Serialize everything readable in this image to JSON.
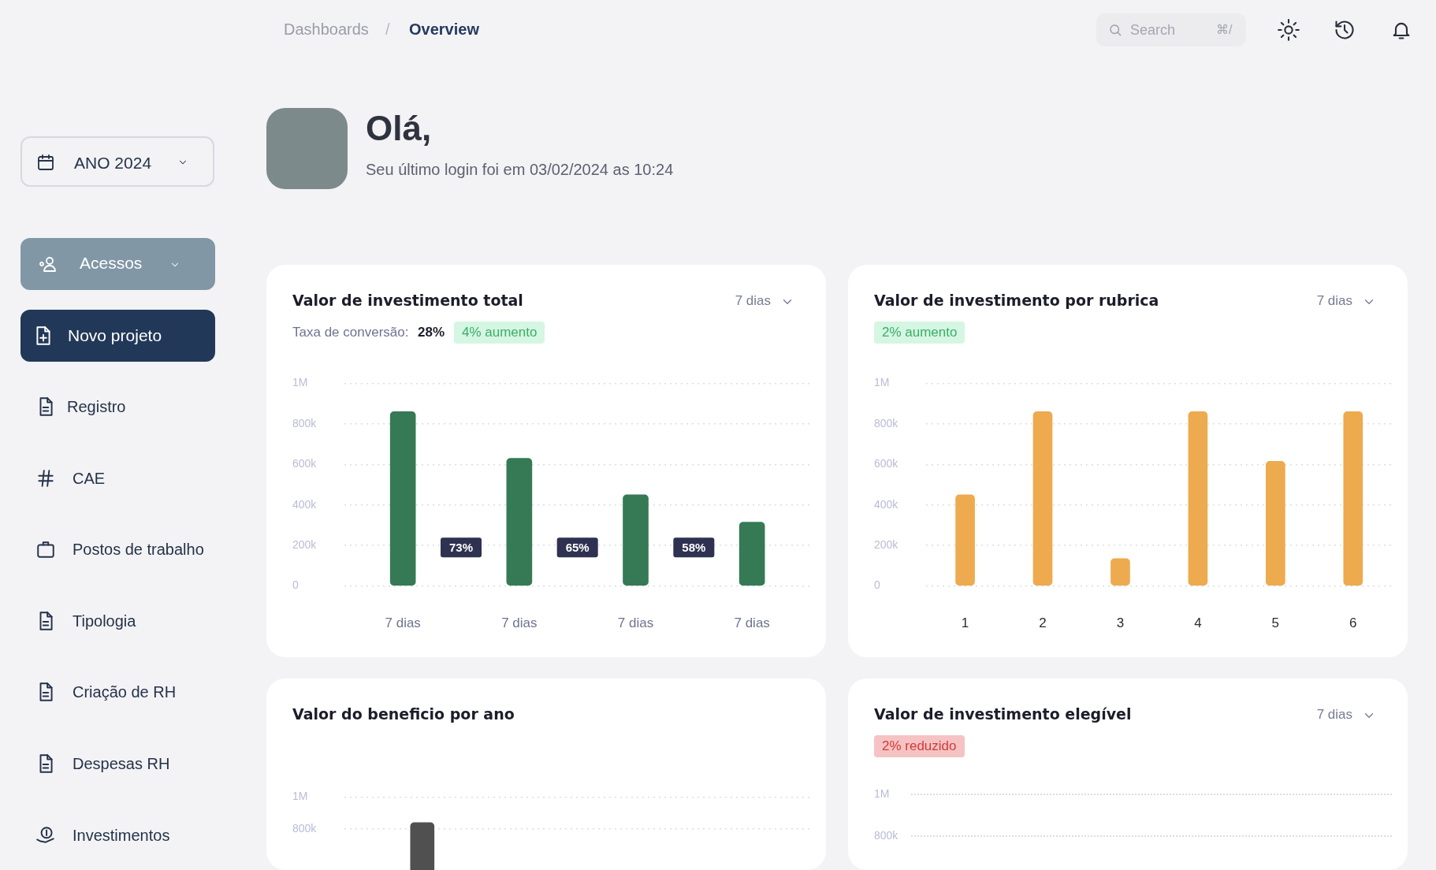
{
  "chart_data": [
    {
      "type": "bar",
      "title": "Valor de investimento total",
      "categories": [
        "7 dias",
        "7 dias",
        "7 dias",
        "7 dias"
      ],
      "values": [
        860000,
        630000,
        450000,
        315000
      ],
      "color": "#357a55",
      "annotations": [
        "7 dias",
        "Taxa de conversão:",
        "28%",
        "4% aumento",
        "73%",
        "65%",
        "58%"
      ],
      "ylim": [
        0,
        1000000
      ],
      "yticks": [
        0,
        {
          "value": 200000,
          "label": "200k"
        },
        {
          "value": 400000,
          "label": "400k"
        },
        {
          "value": 600000,
          "label": "600k"
        },
        {
          "value": 800000,
          "label": "800k"
        },
        {
          "value": 1000000,
          "label": "1M"
        }
      ],
      "grid": "y",
      "legend": false
    },
    {
      "type": "bar",
      "title": "Valor de investimento por rubrica",
      "categories": [
        "1",
        "2",
        "3",
        "4",
        "5",
        "6"
      ],
      "values": [
        450000,
        860000,
        135000,
        860000,
        615000,
        860000
      ],
      "color": "#eeaa4e",
      "annotations": [
        "7 dias",
        "2% aumento"
      ],
      "ylim": [
        0,
        1000000
      ],
      "yticks": [
        0,
        {
          "value": 200000,
          "label": "200k"
        },
        {
          "value": 400000,
          "label": "400k"
        },
        {
          "value": 600000,
          "label": "600k"
        },
        {
          "value": 800000,
          "label": "800k"
        },
        {
          "value": 1000000,
          "label": "1M"
        }
      ],
      "grid": "y",
      "legend": false
    },
    {
      "type": "bar",
      "title": "Valor do beneficio por ano",
      "categories": [
        null,
        null,
        null
      ],
      "values": [
        840000,
        null,
        null
      ],
      "color": "#505050",
      "ylim": [
        800000,
        1000000
      ],
      "yticks": [
        {
          "value": 800000,
          "label": "800k"
        },
        {
          "value": 1000000,
          "label": "1M"
        }
      ],
      "grid": "y",
      "legend": false,
      "tick_labels": "y"
    },
    {
      "type": "other",
      "title": "Valor de investimento elegível",
      "annotations": [
        "7 dias",
        "2% reduzido",
        "1M",
        "800k"
      ]
    },
    {
      "type": "other",
      "annotations": [
        "Dashboards",
        "/",
        "Overview",
        "Search",
        "⌘/",
        "Olá,",
        "Seu último login foi em 03/02/2024 as 10:24",
        "ANO 2024",
        "Acessos",
        "Novo projeto",
        "Registro",
        "CAE",
        "Postos de trabalho",
        "Tipologia",
        "Criação de RH",
        "Despesas RH",
        "Investimentos"
      ]
    }
  ]
}
